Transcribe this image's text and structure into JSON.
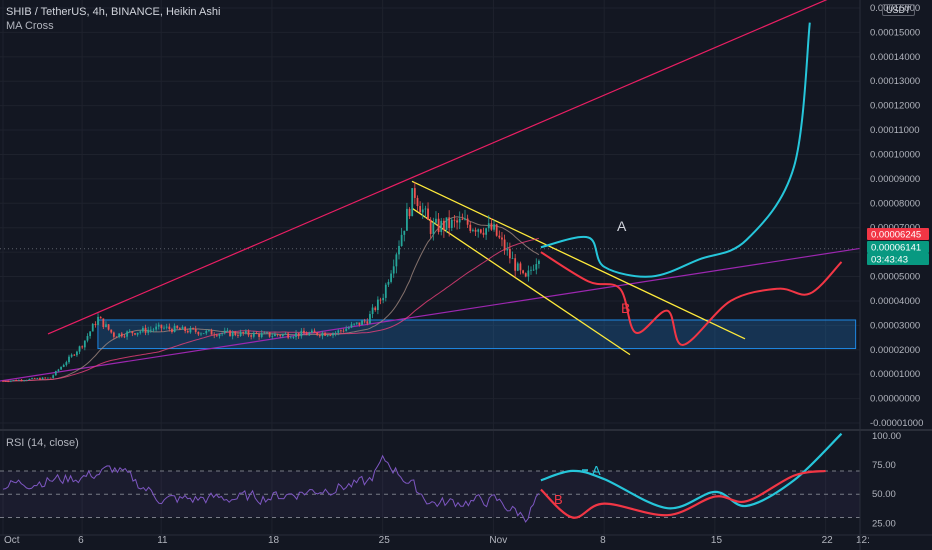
{
  "header": {
    "title": "SHIB / TetherUS, 4h, BINANCE, Heikin Ashi",
    "indicator": "MA Cross",
    "rsi_label": "RSI (14, close)",
    "currency_badge": "USDT"
  },
  "price_tags": [
    {
      "value": "0.00006245",
      "bg": "#f23645",
      "fg": "#ffffff"
    },
    {
      "value": "0.00006141",
      "bg": "#089981",
      "fg": "#ffffff"
    },
    {
      "value": "03:43:43",
      "bg": "#089981",
      "fg": "#ffffff"
    }
  ],
  "annotations": [
    {
      "text": "A",
      "color": "#d1d4dc"
    },
    {
      "text": "B",
      "color": "#f23645"
    },
    {
      "text": "A",
      "color": "#26c6da"
    },
    {
      "text": "B",
      "color": "#f23645"
    }
  ],
  "colors": {
    "background": "#131722",
    "grid": "#1e222d",
    "up": "#26a69a",
    "down": "#ef5350",
    "channel": "#ffeb3b",
    "wedge_upper": "#e91e63",
    "wedge_lower": "#9c27b0",
    "scenario_a": "#26c6da",
    "scenario_b": "#f23645",
    "rsi": "#7e57c2",
    "ma_fast": "#a1887f",
    "ma_slow": "#ec407a",
    "accumulation_box": "#1e88e5"
  },
  "chart_data": [
    {
      "type": "candlestick",
      "title": "SHIB / TetherUS, 4h, BINANCE, Heikin Ashi",
      "x_ticks": [
        "Oct",
        "6",
        "11",
        "18",
        "25",
        "Nov",
        "8",
        "15",
        "22",
        "12:"
      ],
      "y_ticks": [
        "0.00016000",
        "0.00015000",
        "0.00014000",
        "0.00013000",
        "0.00012000",
        "0.00011000",
        "0.00010000",
        "0.00009000",
        "0.00008000",
        "0.00007000",
        "0.00006000",
        "0.00005000",
        "0.00004000",
        "0.00003000",
        "0.00002000",
        "0.00001000",
        "0.00000000",
        "-0.00001000"
      ],
      "ylim": [
        -1e-05,
        0.00016
      ],
      "series": [
        {
          "name": "price",
          "key_points": [
            {
              "date": "Oct 1",
              "value": 7.2e-06
            },
            {
              "date": "Oct 4",
              "value": 8.5e-06
            },
            {
              "date": "Oct 6",
              "value": 2.2e-05
            },
            {
              "date": "Oct 7",
              "value": 3.3e-05
            },
            {
              "date": "Oct 8",
              "value": 2.6e-05
            },
            {
              "date": "Oct 11",
              "value": 2.9e-05
            },
            {
              "date": "Oct 14",
              "value": 2.7e-05
            },
            {
              "date": "Oct 18",
              "value": 2.6e-05
            },
            {
              "date": "Oct 22",
              "value": 2.7e-05
            },
            {
              "date": "Oct 24",
              "value": 3.2e-05
            },
            {
              "date": "Oct 25",
              "value": 4.2e-05
            },
            {
              "date": "Oct 27",
              "value": 8.5e-05
            },
            {
              "date": "Oct 28",
              "value": 7e-05
            },
            {
              "date": "Oct 30",
              "value": 7.2e-05
            },
            {
              "date": "Nov 1",
              "value": 6.9e-05
            },
            {
              "date": "Nov 3",
              "value": 4.8e-05
            },
            {
              "date": "Nov 4",
              "value": 6.1e-05
            }
          ]
        },
        {
          "name": "A",
          "key_points": [
            {
              "date": "Nov 4",
              "value": 6.2e-05
            },
            {
              "date": "Nov 7",
              "value": 6.6e-05
            },
            {
              "date": "Nov 8",
              "value": 5.4e-05
            },
            {
              "date": "Nov 11",
              "value": 5e-05
            },
            {
              "date": "Nov 14",
              "value": 5.7e-05
            },
            {
              "date": "Nov 17",
              "value": 6.5e-05
            },
            {
              "date": "Nov 20",
              "value": 9.5e-05
            },
            {
              "date": "Nov 21",
              "value": 0.000154
            }
          ]
        },
        {
          "name": "B",
          "key_points": [
            {
              "date": "Nov 4",
              "value": 6e-05
            },
            {
              "date": "Nov 7",
              "value": 4.8e-05
            },
            {
              "date": "Nov 9",
              "value": 4.5e-05
            },
            {
              "date": "Nov 10",
              "value": 2.7e-05
            },
            {
              "date": "Nov 12",
              "value": 3.6e-05
            },
            {
              "date": "Nov 13",
              "value": 2.2e-05
            },
            {
              "date": "Nov 16",
              "value": 4e-05
            },
            {
              "date": "Nov 19",
              "value": 4.5e-05
            },
            {
              "date": "Nov 21",
              "value": 4.3e-05
            },
            {
              "date": "Nov 23",
              "value": 5.6e-05
            }
          ]
        }
      ]
    },
    {
      "type": "line",
      "title": "RSI (14, close)",
      "y_ticks": [
        "100.00",
        "75.00",
        "50.00",
        "25.00"
      ],
      "ylim": [
        15,
        100
      ],
      "bands": [
        70,
        50,
        30
      ],
      "series": [
        {
          "name": "RSI",
          "key_points": [
            {
              "date": "Oct 1",
              "value": 58
            },
            {
              "date": "Oct 6",
              "value": 65
            },
            {
              "date": "Oct 8",
              "value": 72
            },
            {
              "date": "Oct 11",
              "value": 45
            },
            {
              "date": "Oct 18",
              "value": 48
            },
            {
              "date": "Oct 24",
              "value": 60
            },
            {
              "date": "Oct 25",
              "value": 80
            },
            {
              "date": "Oct 28",
              "value": 42
            },
            {
              "date": "Nov 1",
              "value": 45
            },
            {
              "date": "Nov 3",
              "value": 30
            },
            {
              "date": "Nov 4",
              "value": 55
            }
          ]
        },
        {
          "name": "A",
          "key_points": [
            {
              "date": "Nov 4",
              "value": 62
            },
            {
              "date": "Nov 6",
              "value": 70
            },
            {
              "date": "Nov 8",
              "value": 63
            },
            {
              "date": "Nov 12",
              "value": 38
            },
            {
              "date": "Nov 15",
              "value": 52
            },
            {
              "date": "Nov 17",
              "value": 40
            },
            {
              "date": "Nov 20",
              "value": 62
            },
            {
              "date": "Nov 23",
              "value": 102
            }
          ]
        },
        {
          "name": "B",
          "key_points": [
            {
              "date": "Nov 4",
              "value": 54
            },
            {
              "date": "Nov 6",
              "value": 30
            },
            {
              "date": "Nov 8",
              "value": 42
            },
            {
              "date": "Nov 12",
              "value": 32
            },
            {
              "date": "Nov 15",
              "value": 48
            },
            {
              "date": "Nov 17",
              "value": 44
            },
            {
              "date": "Nov 20",
              "value": 66
            },
            {
              "date": "Nov 22",
              "value": 70
            }
          ]
        }
      ]
    }
  ]
}
